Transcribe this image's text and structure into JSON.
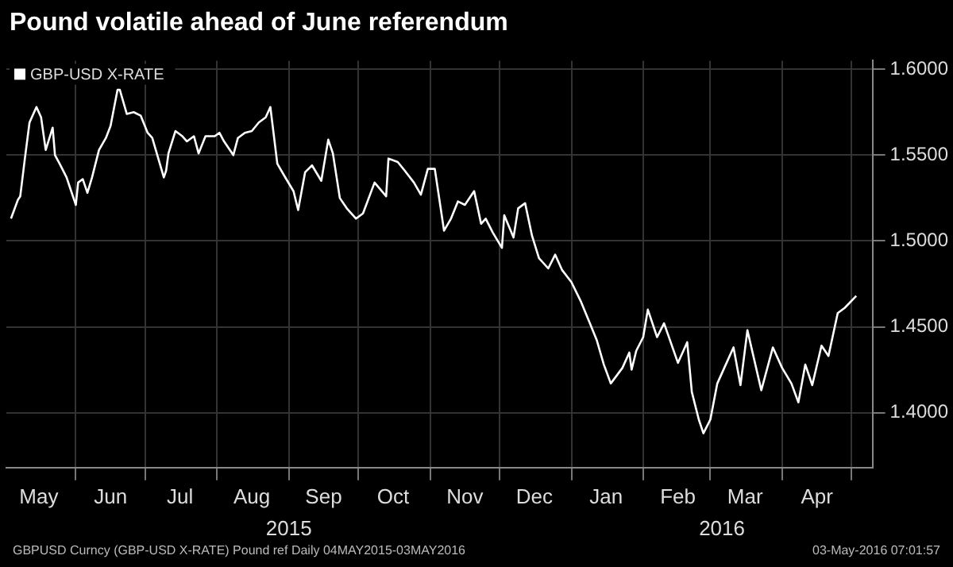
{
  "chart_data": {
    "type": "line",
    "title": "Pound volatile ahead of June referendum",
    "x": [
      "2015-05-04",
      "2015-05-07",
      "2015-05-08",
      "2015-05-10",
      "2015-05-12",
      "2015-05-15",
      "2015-05-17",
      "2015-05-19",
      "2015-05-22",
      "2015-05-23",
      "2015-05-25",
      "2015-05-28",
      "2015-05-30",
      "2015-06-01",
      "2015-06-02",
      "2015-06-04",
      "2015-06-06",
      "2015-06-08",
      "2015-06-11",
      "2015-06-14",
      "2015-06-16",
      "2015-06-19",
      "2015-06-20",
      "2015-06-23",
      "2015-06-26",
      "2015-06-29",
      "2015-07-02",
      "2015-07-04",
      "2015-07-09",
      "2015-07-10",
      "2015-07-11",
      "2015-07-14",
      "2015-07-17",
      "2015-07-19",
      "2015-07-22",
      "2015-07-24",
      "2015-07-27",
      "2015-07-31",
      "2015-08-02",
      "2015-08-04",
      "2015-08-08",
      "2015-08-10",
      "2015-08-13",
      "2015-08-16",
      "2015-08-19",
      "2015-08-22",
      "2015-08-24",
      "2015-08-27",
      "2015-08-30",
      "2015-09-03",
      "2015-09-05",
      "2015-09-08",
      "2015-09-11",
      "2015-09-15",
      "2015-09-18",
      "2015-09-20",
      "2015-09-23",
      "2015-09-26",
      "2015-09-30",
      "2015-10-03",
      "2015-10-08",
      "2015-10-13",
      "2015-10-14",
      "2015-10-18",
      "2015-10-21",
      "2015-10-25",
      "2015-10-28",
      "2015-10-31",
      "2015-11-03",
      "2015-11-07",
      "2015-11-10",
      "2015-11-13",
      "2015-11-16",
      "2015-11-19",
      "2015-11-20",
      "2015-11-23",
      "2015-11-25",
      "2015-11-28",
      "2015-12-02",
      "2015-12-03",
      "2015-12-07",
      "2015-12-09",
      "2015-12-12",
      "2015-12-15",
      "2015-12-18",
      "2015-12-22",
      "2015-12-25",
      "2015-12-28",
      "2016-01-01",
      "2016-01-05",
      "2016-01-09",
      "2016-01-12",
      "2016-01-15",
      "2016-01-18",
      "2016-01-23",
      "2016-01-26",
      "2016-01-27",
      "2016-01-29",
      "2016-02-01",
      "2016-02-03",
      "2016-02-07",
      "2016-02-10",
      "2016-02-16",
      "2016-02-20",
      "2016-02-22",
      "2016-02-25",
      "2016-02-27",
      "2016-03-01",
      "2016-03-04",
      "2016-03-07",
      "2016-03-11",
      "2016-03-14",
      "2016-03-17",
      "2016-03-23",
      "2016-03-28",
      "2016-04-01",
      "2016-04-05",
      "2016-04-08",
      "2016-04-11",
      "2016-04-14",
      "2016-04-18",
      "2016-04-21",
      "2016-04-25",
      "2016-04-28",
      "2016-05-03"
    ],
    "series": [
      {
        "name": "GBP-USD X-RATE",
        "color": "#ffffff",
        "values": [
          1.513,
          1.524,
          1.526,
          1.548,
          1.569,
          1.578,
          1.572,
          1.553,
          1.566,
          1.55,
          1.545,
          1.537,
          1.529,
          1.521,
          1.534,
          1.536,
          1.528,
          1.537,
          1.553,
          1.56,
          1.567,
          1.588,
          1.588,
          1.574,
          1.575,
          1.573,
          1.563,
          1.56,
          1.537,
          1.541,
          1.551,
          1.564,
          1.561,
          1.558,
          1.561,
          1.551,
          1.561,
          1.561,
          1.563,
          1.558,
          1.55,
          1.56,
          1.563,
          1.564,
          1.569,
          1.572,
          1.578,
          1.545,
          1.538,
          1.529,
          1.518,
          1.54,
          1.544,
          1.535,
          1.559,
          1.551,
          1.525,
          1.519,
          1.513,
          1.516,
          1.534,
          1.526,
          1.548,
          1.546,
          1.541,
          1.534,
          1.527,
          1.542,
          1.542,
          1.506,
          1.513,
          1.523,
          1.521,
          1.527,
          1.529,
          1.51,
          1.513,
          1.505,
          1.496,
          1.515,
          1.502,
          1.519,
          1.522,
          1.503,
          1.49,
          1.484,
          1.492,
          1.483,
          1.476,
          1.465,
          1.452,
          1.442,
          1.428,
          1.417,
          1.426,
          1.435,
          1.425,
          1.436,
          1.444,
          1.46,
          1.444,
          1.452,
          1.429,
          1.441,
          1.412,
          1.396,
          1.388,
          1.396,
          1.417,
          1.426,
          1.438,
          1.416,
          1.448,
          1.413,
          1.438,
          1.426,
          1.417,
          1.406,
          1.428,
          1.416,
          1.439,
          1.433,
          1.458,
          1.461,
          1.468
        ]
      }
    ],
    "xlim": [
      "2015-05-02",
      "2016-05-10"
    ],
    "xticks": [
      {
        "value": "2015-05-16",
        "label": "May"
      },
      {
        "value": "2015-06-01",
        "label": null
      },
      {
        "value": "2015-06-16",
        "label": "Jun"
      },
      {
        "value": "2015-07-01",
        "label": null
      },
      {
        "value": "2015-07-16",
        "label": "Jul"
      },
      {
        "value": "2015-08-01",
        "label": null
      },
      {
        "value": "2015-08-16",
        "label": "Aug"
      },
      {
        "value": "2015-09-01",
        "label": null
      },
      {
        "value": "2015-09-16",
        "label": "Sep"
      },
      {
        "value": "2015-10-01",
        "label": null
      },
      {
        "value": "2015-10-16",
        "label": "Oct"
      },
      {
        "value": "2015-11-01",
        "label": null
      },
      {
        "value": "2015-11-16",
        "label": "Nov"
      },
      {
        "value": "2015-12-01",
        "label": null
      },
      {
        "value": "2015-12-16",
        "label": "Dec"
      },
      {
        "value": "2016-01-01",
        "label": null
      },
      {
        "value": "2016-01-16",
        "label": "Jan"
      },
      {
        "value": "2016-02-01",
        "label": null
      },
      {
        "value": "2016-02-16",
        "label": "Feb"
      },
      {
        "value": "2016-03-01",
        "label": null
      },
      {
        "value": "2016-03-16",
        "label": "Mar"
      },
      {
        "value": "2016-04-01",
        "label": null
      },
      {
        "value": "2016-04-16",
        "label": "Apr"
      },
      {
        "value": "2016-05-01",
        "label": null
      }
    ],
    "ylim": [
      1.368,
      1.605
    ],
    "yticks": [
      {
        "value": 1.4,
        "label": "1.4000"
      },
      {
        "value": 1.45,
        "label": "1.4500"
      },
      {
        "value": 1.5,
        "label": "1.5000"
      },
      {
        "value": 1.55,
        "label": "1.5500"
      },
      {
        "value": 1.6,
        "label": "1.6000"
      }
    ],
    "grid": true,
    "legend": "top left",
    "marker": "none",
    "line_style": "solid",
    "annotations": [
      "2015",
      "2016",
      "GBPUSD Curncy (GBP-USD X-RATE) Pound ref  Daily 04MAY2015-03MAY2016",
      "03-May-2016 07:01:57"
    ]
  }
}
